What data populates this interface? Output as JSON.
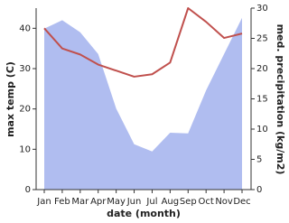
{
  "chart_data": {
    "type": "line_area_dual",
    "x_label": "date (month)",
    "y_label": "max temp (C)",
    "y2_label": "med. precipitation (kg/m2)",
    "categories": [
      "Jan",
      "Feb",
      "Mar",
      "Apr",
      "May",
      "Jun",
      "Jul",
      "Aug",
      "Sep",
      "Oct",
      "Nov",
      "Dec"
    ],
    "ylim": [
      0,
      45
    ],
    "yticks": [
      0,
      10,
      20,
      30,
      40
    ],
    "y2lim": [
      0,
      30
    ],
    "y2ticks": [
      0,
      5,
      10,
      15,
      20,
      25,
      30
    ],
    "series": [
      {
        "name": "med. precipitation",
        "kind": "area",
        "axis": "y2",
        "color": "#b0bdf0",
        "values": [
          26.6,
          28,
          26,
          22.4,
          13.4,
          7.5,
          6.3,
          9.4,
          9.3,
          16.4,
          22.4,
          28.4
        ]
      },
      {
        "name": "max temp",
        "kind": "line",
        "color": "#c0504d",
        "values": [
          40,
          35,
          33.5,
          31,
          29.5,
          28,
          28.6,
          31.5,
          45,
          41.6,
          37.6,
          38.7
        ]
      }
    ]
  }
}
